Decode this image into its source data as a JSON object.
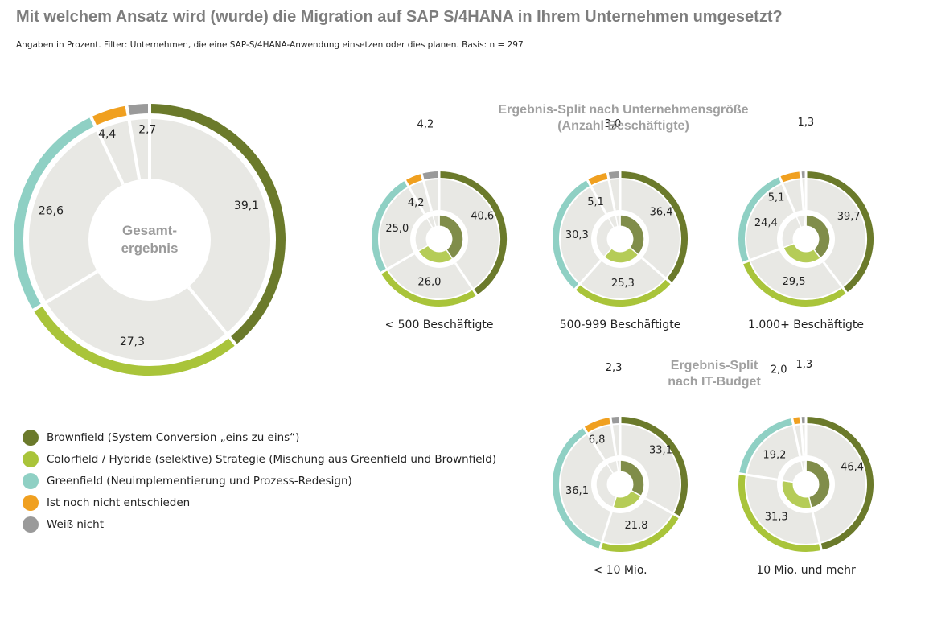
{
  "title": "Mit welchem Ansatz wird (wurde) die Migration auf SAP S/4HANA in Ihrem Unternehmen umgesetzt?",
  "subtitle": "Angaben in Prozent. Filter: Unternehmen, die eine SAP-S/4HANA-Anwendung einsetzen oder dies planen. Basis: n = 297",
  "colors": {
    "Brownfield": "#6b7a2b",
    "Colorfield": "#a9c43a",
    "Greenfield": "#8fd0c4",
    "Ist noch nicht entschieden": "#f0a020",
    "Weiß nicht": "#9a9a9a",
    "inner_fill": "#e8e8e4",
    "divider": "#ffffff"
  },
  "legend": [
    {
      "key": "Brownfield",
      "label": "Brownfield (System Conversion „eins zu eins“)"
    },
    {
      "key": "Colorfield",
      "label": "Colorfield / Hybride (selektive) Strategie (Mischung aus Greenfield und Brownfield)"
    },
    {
      "key": "Greenfield",
      "label": "Greenfield (Neuimplementierung und Prozess-Redesign)"
    },
    {
      "key": "Ist noch nicht entschieden",
      "label": "Ist noch nicht entschieden"
    },
    {
      "key": "Weiß nicht",
      "label": "Weiß nicht"
    }
  ],
  "group_titles": {
    "size": "Ergebnis-Split nach Unternehmensgröße (Anzahl Beschäftigte)",
    "it_budget": "Ergebnis-Split nach IT-Budget"
  },
  "chart_data": [
    {
      "type": "pie",
      "center_label": "Gesamt-ergebnis",
      "categories": [
        "Brownfield",
        "Colorfield",
        "Greenfield",
        "Ist noch nicht entschieden",
        "Weiß nicht"
      ],
      "values": [
        39.1,
        27.3,
        26.6,
        4.4,
        2.7
      ],
      "value_labels": [
        "39,1",
        "27,3",
        "26,6",
        "4,4",
        "2,7"
      ]
    },
    {
      "type": "pie",
      "caption": "< 500 Beschäftigte",
      "categories": [
        "Brownfield",
        "Colorfield",
        "Greenfield",
        "Ist noch nicht entschieden",
        "Weiß nicht"
      ],
      "values": [
        40.6,
        26.0,
        25.0,
        4.2,
        4.2
      ],
      "value_labels": [
        "40,6",
        "26,0",
        "25,0",
        "4,2",
        "4,2"
      ]
    },
    {
      "type": "pie",
      "caption": "500-999 Beschäftigte",
      "categories": [
        "Brownfield",
        "Colorfield",
        "Greenfield",
        "Ist noch nicht entschieden",
        "Weiß nicht"
      ],
      "values": [
        36.4,
        25.3,
        30.3,
        5.1,
        3.0
      ],
      "value_labels": [
        "36,4",
        "25,3",
        "30,3",
        "5,1",
        "3,0"
      ]
    },
    {
      "type": "pie",
      "caption": "1.000+ Beschäftigte",
      "categories": [
        "Brownfield",
        "Colorfield",
        "Greenfield",
        "Ist noch nicht entschieden",
        "Weiß nicht"
      ],
      "values": [
        39.7,
        29.5,
        24.4,
        5.1,
        1.3
      ],
      "value_labels": [
        "39,7",
        "29,5",
        "24,4",
        "5,1",
        "1,3"
      ]
    },
    {
      "type": "pie",
      "caption": "< 10 Mio.",
      "categories": [
        "Brownfield",
        "Colorfield",
        "Greenfield",
        "Ist noch nicht entschieden",
        "Weiß nicht"
      ],
      "values": [
        33.1,
        21.8,
        36.1,
        6.8,
        2.3
      ],
      "value_labels": [
        "33,1",
        "21,8",
        "36,1",
        "6,8",
        "2,3"
      ]
    },
    {
      "type": "pie",
      "caption": "10 Mio. und mehr",
      "categories": [
        "Brownfield",
        "Colorfield",
        "Greenfield",
        "Ist noch nicht entschieden",
        "Weiß nicht"
      ],
      "values": [
        46.4,
        31.3,
        19.2,
        2.0,
        1.3
      ],
      "value_labels": [
        "46,4",
        "31,3",
        "19,2",
        "2,0",
        "1,3"
      ]
    }
  ]
}
